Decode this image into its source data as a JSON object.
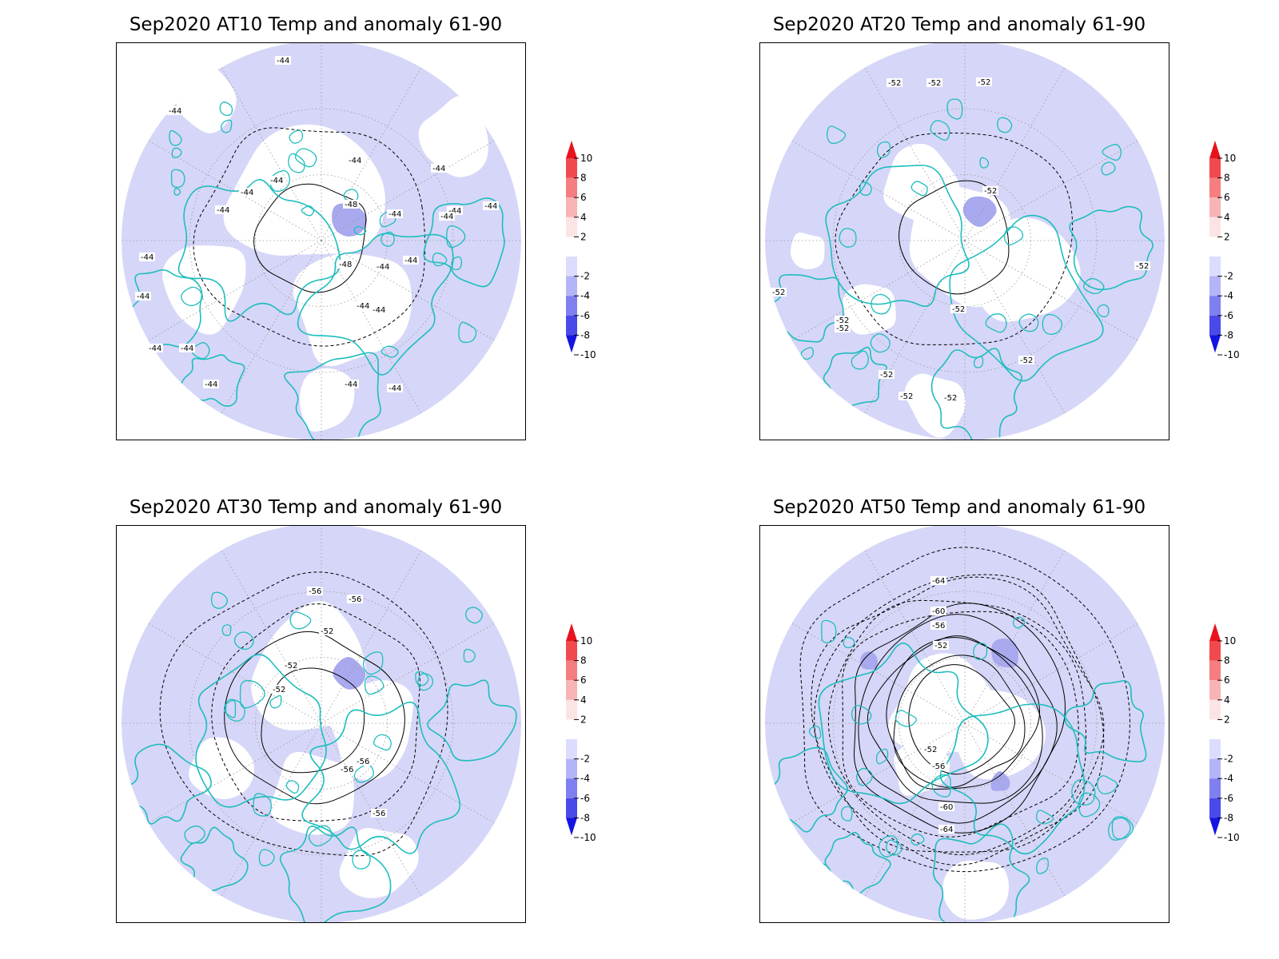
{
  "panels": [
    {
      "id": "at10",
      "title": "Sep2020 AT10 Temp and anomaly 61-90",
      "contour_labels": [
        "-44",
        "-44",
        "-44",
        "-44",
        "-44",
        "-44",
        "-44",
        "-44",
        "-48",
        "-44",
        "-44",
        "-48",
        "-44",
        "-44",
        "-44",
        "-44",
        "-44",
        "-44",
        "-44",
        "-44",
        "-44",
        "-44",
        "-44",
        "-44"
      ]
    },
    {
      "id": "at20",
      "title": "Sep2020 AT20 Temp and anomaly 61-90",
      "contour_labels": [
        "-52",
        "-52",
        "-52",
        "-52",
        "-52",
        "-52",
        "-52",
        "-52",
        "-52",
        "-52",
        "-52",
        "-52",
        "-52"
      ]
    },
    {
      "id": "at30",
      "title": "Sep2020 AT30 Temp and anomaly 61-90",
      "contour_labels": [
        "-56",
        "-56",
        "-52",
        "-52",
        "-52",
        "-56",
        "-56",
        "-56"
      ]
    },
    {
      "id": "at50",
      "title": "Sep2020 AT50 Temp and anomaly 61-90",
      "contour_labels": [
        "-64",
        "-60",
        "-56",
        "-52",
        "-52",
        "-56",
        "-60",
        "-64"
      ]
    }
  ],
  "colorbar": {
    "labels": [
      "10",
      "8",
      "6",
      "4",
      "2",
      "-2",
      "-4",
      "-6",
      "-8",
      "-10"
    ],
    "colors": [
      "#e8131c",
      "#f04a4f",
      "#f47e80",
      "#f8b3b4",
      "#fde4e4",
      "#ffffff",
      "#dcdcff",
      "#b4b4f8",
      "#7f7ff0",
      "#4a4ae8",
      "#1414e2"
    ]
  },
  "style": {
    "anomaly_fill": "#d6d6f8",
    "anomaly_strong": "#a9a9ef",
    "coastline": "#1fbdbd",
    "contour": "#000000"
  }
}
